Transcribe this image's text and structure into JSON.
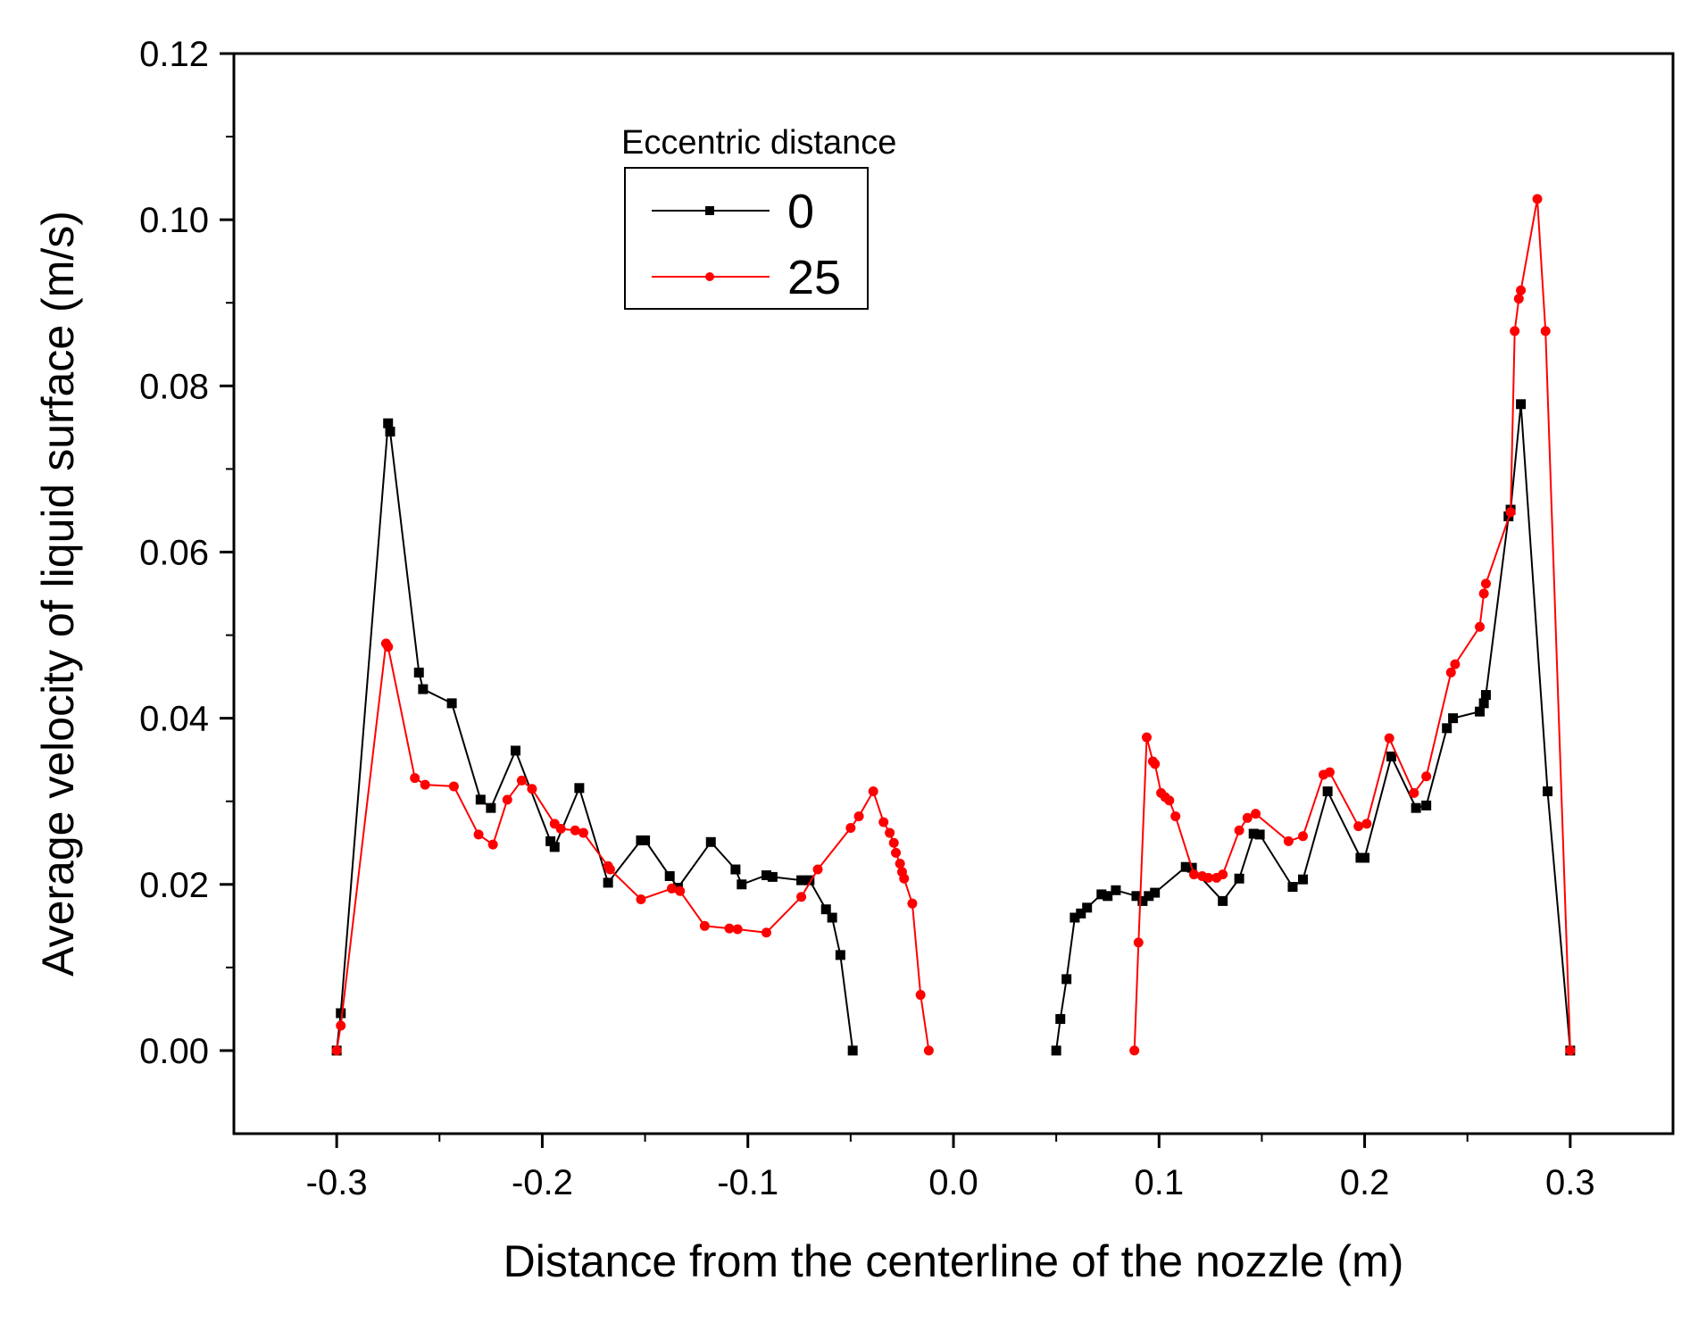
{
  "chart_data": {
    "type": "line",
    "title": "",
    "xlabel": "Distance from the centerline of the nozzle (m)",
    "ylabel": "Average velocity of liquid surface (m/s)",
    "xlim": [
      -0.35,
      0.35
    ],
    "ylim": [
      -0.01,
      0.12
    ],
    "x_ticks": [
      -0.3,
      -0.2,
      -0.1,
      0.0,
      0.1,
      0.2,
      0.3
    ],
    "x_tick_labels": [
      "-0.3",
      "-0.2",
      "-0.1",
      "0.0",
      "0.1",
      "0.2",
      "0.3"
    ],
    "y_ticks": [
      0.0,
      0.02,
      0.04,
      0.06,
      0.08,
      0.1,
      0.12
    ],
    "y_tick_labels": [
      "0.00",
      "0.02",
      "0.04",
      "0.06",
      "0.08",
      "0.10",
      "0.12"
    ],
    "grid": false,
    "legend": {
      "title": "Eccentric distance",
      "placement": "top-center"
    },
    "series": [
      {
        "name": "0",
        "color": "#000000",
        "marker": "square",
        "segments": [
          [
            [
              -0.3,
              0.0
            ],
            [
              -0.298,
              0.0045
            ],
            [
              -0.275,
              0.0755
            ],
            [
              -0.274,
              0.0745
            ],
            [
              -0.26,
              0.0455
            ],
            [
              -0.258,
              0.0435
            ],
            [
              -0.244,
              0.0418
            ],
            [
              -0.23,
              0.0302
            ],
            [
              -0.225,
              0.0292
            ],
            [
              -0.213,
              0.0361
            ],
            [
              -0.196,
              0.0252
            ],
            [
              -0.194,
              0.0245
            ],
            [
              -0.182,
              0.0316
            ],
            [
              -0.168,
              0.0202
            ],
            [
              -0.152,
              0.0253
            ],
            [
              -0.15,
              0.0253
            ],
            [
              -0.138,
              0.021
            ],
            [
              -0.134,
              0.0196
            ],
            [
              -0.118,
              0.0251
            ],
            [
              -0.106,
              0.0218
            ],
            [
              -0.103,
              0.02
            ],
            [
              -0.091,
              0.0211
            ],
            [
              -0.088,
              0.0209
            ],
            [
              -0.074,
              0.0205
            ],
            [
              -0.07,
              0.0205
            ],
            [
              -0.062,
              0.017
            ],
            [
              -0.059,
              0.016
            ],
            [
              -0.055,
              0.0115
            ],
            [
              -0.049,
              0.0
            ]
          ],
          [
            [
              0.05,
              0.0
            ],
            [
              0.052,
              0.0038
            ],
            [
              0.055,
              0.0086
            ],
            [
              0.059,
              0.016
            ],
            [
              0.062,
              0.0165
            ],
            [
              0.065,
              0.0172
            ],
            [
              0.072,
              0.0188
            ],
            [
              0.075,
              0.0186
            ],
            [
              0.079,
              0.0193
            ],
            [
              0.089,
              0.0186
            ],
            [
              0.092,
              0.018
            ],
            [
              0.095,
              0.0186
            ],
            [
              0.098,
              0.019
            ],
            [
              0.113,
              0.0221
            ],
            [
              0.116,
              0.022
            ],
            [
              0.131,
              0.018
            ],
            [
              0.139,
              0.0207
            ],
            [
              0.146,
              0.0261
            ],
            [
              0.149,
              0.026
            ],
            [
              0.165,
              0.0197
            ],
            [
              0.17,
              0.0206
            ],
            [
              0.182,
              0.0312
            ],
            [
              0.198,
              0.0232
            ],
            [
              0.2,
              0.0232
            ],
            [
              0.213,
              0.0354
            ],
            [
              0.225,
              0.0292
            ],
            [
              0.23,
              0.0295
            ],
            [
              0.24,
              0.0388
            ],
            [
              0.243,
              0.04
            ],
            [
              0.256,
              0.0408
            ],
            [
              0.258,
              0.0418
            ],
            [
              0.259,
              0.0428
            ],
            [
              0.27,
              0.0643
            ],
            [
              0.271,
              0.0651
            ],
            [
              0.276,
              0.0778
            ],
            [
              0.289,
              0.0312
            ],
            [
              0.3,
              0.0
            ]
          ]
        ]
      },
      {
        "name": "25",
        "color": "#ff0000",
        "marker": "circle",
        "segments": [
          [
            [
              -0.3,
              0.0
            ],
            [
              -0.298,
              0.003
            ],
            [
              -0.276,
              0.049
            ],
            [
              -0.275,
              0.0486
            ],
            [
              -0.262,
              0.0328
            ],
            [
              -0.257,
              0.032
            ],
            [
              -0.243,
              0.0318
            ],
            [
              -0.231,
              0.026
            ],
            [
              -0.224,
              0.0248
            ],
            [
              -0.217,
              0.0302
            ],
            [
              -0.21,
              0.0325
            ],
            [
              -0.205,
              0.0315
            ],
            [
              -0.194,
              0.0273
            ],
            [
              -0.191,
              0.0267
            ],
            [
              -0.184,
              0.0265
            ],
            [
              -0.18,
              0.0262
            ],
            [
              -0.168,
              0.0222
            ],
            [
              -0.167,
              0.0218
            ],
            [
              -0.152,
              0.0182
            ],
            [
              -0.137,
              0.0195
            ],
            [
              -0.133,
              0.0192
            ],
            [
              -0.121,
              0.015
            ],
            [
              -0.109,
              0.0147
            ],
            [
              -0.105,
              0.0146
            ],
            [
              -0.091,
              0.0142
            ],
            [
              -0.074,
              0.0185
            ],
            [
              -0.066,
              0.0218
            ],
            [
              -0.05,
              0.0268
            ],
            [
              -0.046,
              0.0282
            ],
            [
              -0.039,
              0.0312
            ],
            [
              -0.034,
              0.0275
            ],
            [
              -0.031,
              0.0262
            ],
            [
              -0.029,
              0.025
            ],
            [
              -0.028,
              0.0238
            ],
            [
              -0.026,
              0.0225
            ],
            [
              -0.025,
              0.0215
            ],
            [
              -0.024,
              0.0207
            ],
            [
              -0.02,
              0.0177
            ],
            [
              -0.016,
              0.0067
            ],
            [
              -0.012,
              0.0
            ]
          ],
          [
            [
              0.088,
              0.0
            ],
            [
              0.09,
              0.013
            ],
            [
              0.094,
              0.0377
            ],
            [
              0.097,
              0.0348
            ],
            [
              0.098,
              0.0345
            ],
            [
              0.101,
              0.031
            ],
            [
              0.103,
              0.0305
            ],
            [
              0.105,
              0.0301
            ],
            [
              0.108,
              0.0282
            ],
            [
              0.117,
              0.0212
            ],
            [
              0.121,
              0.021
            ],
            [
              0.124,
              0.0208
            ],
            [
              0.128,
              0.0208
            ],
            [
              0.131,
              0.0212
            ],
            [
              0.139,
              0.0265
            ],
            [
              0.143,
              0.028
            ],
            [
              0.147,
              0.0285
            ],
            [
              0.163,
              0.0252
            ],
            [
              0.17,
              0.0258
            ],
            [
              0.18,
              0.0332
            ],
            [
              0.183,
              0.0335
            ],
            [
              0.197,
              0.027
            ],
            [
              0.201,
              0.0273
            ],
            [
              0.212,
              0.0376
            ],
            [
              0.224,
              0.031
            ],
            [
              0.23,
              0.033
            ],
            [
              0.242,
              0.0455
            ],
            [
              0.244,
              0.0465
            ],
            [
              0.256,
              0.051
            ],
            [
              0.258,
              0.055
            ],
            [
              0.259,
              0.0562
            ],
            [
              0.271,
              0.0648
            ],
            [
              0.273,
              0.0866
            ],
            [
              0.275,
              0.0905
            ],
            [
              0.276,
              0.0915
            ],
            [
              0.284,
              0.1025
            ],
            [
              0.288,
              0.0866
            ],
            [
              0.3,
              0.0
            ]
          ]
        ]
      }
    ]
  }
}
